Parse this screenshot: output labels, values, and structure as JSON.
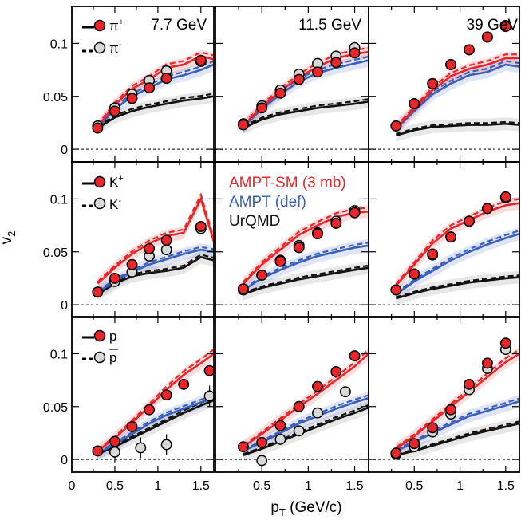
{
  "figure": {
    "ylabel": "v",
    "ylabel_sub": "2",
    "xlabel": "p",
    "xlabel_sub": "T",
    "xlabel_unit": " (GeV/c)",
    "energies": [
      "7.7 GeV",
      "11.5 GeV",
      "39 GeV"
    ],
    "x_ticks": [
      "0",
      "0.5",
      "1",
      "1.5"
    ],
    "y_ticks": [
      "0",
      "0.05",
      "0.1"
    ]
  },
  "legend_particles": [
    {
      "particle": "π",
      "charge_plus": "+",
      "charge_minus": "-"
    },
    {
      "particle": "K",
      "charge_plus": "+",
      "charge_minus": "-"
    },
    {
      "particle": "p",
      "charge_plus": "",
      "charge_minus": ""
    }
  ],
  "legend_models": [
    "AMPT-SM (3 mb)",
    "AMPT (def)",
    "UrQMD"
  ],
  "colors": {
    "ampt_sm": "#e8262a",
    "ampt_def": "#3a5fb8",
    "urqmd": "#111111",
    "marker_plus": "#e8262a",
    "marker_minus": "#d8d8d8"
  },
  "chart_data": {
    "type": "scatter",
    "xlim": [
      0,
      1.65
    ],
    "ylim": [
      -0.012,
      0.135
    ],
    "rows": [
      "pion",
      "kaon",
      "proton"
    ],
    "columns": [
      "7.7 GeV",
      "11.5 GeV",
      "39 GeV"
    ],
    "panels": [
      {
        "row": "pion",
        "energy": "7.7 GeV",
        "plus": {
          "x": [
            0.3,
            0.5,
            0.7,
            0.9,
            1.1,
            1.5
          ],
          "y": [
            0.02,
            0.036,
            0.048,
            0.058,
            0.067,
            0.084
          ]
        },
        "minus": {
          "x": [
            0.3,
            0.5,
            0.7,
            0.9,
            1.1,
            1.5
          ],
          "y": [
            0.022,
            0.039,
            0.052,
            0.065,
            0.074,
            0.083
          ]
        },
        "ampt_sm": {
          "x": [
            0.3,
            0.5,
            0.7,
            0.9,
            1.1,
            1.3,
            1.5,
            1.65
          ],
          "y": [
            0.021,
            0.042,
            0.057,
            0.066,
            0.077,
            0.08,
            0.088,
            0.085
          ]
        },
        "ampt_def": {
          "x": [
            0.3,
            0.5,
            0.7,
            0.9,
            1.1,
            1.3,
            1.5,
            1.65
          ],
          "y": [
            0.02,
            0.038,
            0.05,
            0.058,
            0.066,
            0.07,
            0.075,
            0.08
          ]
        },
        "urqmd": {
          "x": [
            0.3,
            0.5,
            0.7,
            0.9,
            1.1,
            1.3,
            1.5,
            1.65
          ],
          "y": [
            0.02,
            0.03,
            0.036,
            0.04,
            0.043,
            0.046,
            0.048,
            0.05
          ]
        }
      },
      {
        "row": "pion",
        "energy": "11.5 GeV",
        "plus": {
          "x": [
            0.3,
            0.5,
            0.7,
            0.9,
            1.1,
            1.3,
            1.5
          ],
          "y": [
            0.023,
            0.039,
            0.053,
            0.066,
            0.073,
            0.082,
            0.091
          ]
        },
        "minus": {
          "x": [
            0.3,
            0.5,
            0.7,
            0.9,
            1.1,
            1.3,
            1.5
          ],
          "y": [
            0.024,
            0.041,
            0.056,
            0.071,
            0.081,
            0.088,
            0.096
          ]
        },
        "ampt_sm": {
          "x": [
            0.3,
            0.5,
            0.7,
            0.9,
            1.1,
            1.3,
            1.5,
            1.65
          ],
          "y": [
            0.022,
            0.04,
            0.055,
            0.068,
            0.078,
            0.086,
            0.09,
            0.092
          ]
        },
        "ampt_def": {
          "x": [
            0.3,
            0.5,
            0.7,
            0.9,
            1.1,
            1.3,
            1.5,
            1.65
          ],
          "y": [
            0.021,
            0.038,
            0.052,
            0.064,
            0.072,
            0.077,
            0.081,
            0.084
          ]
        },
        "urqmd": {
          "x": [
            0.3,
            0.5,
            0.7,
            0.9,
            1.1,
            1.3,
            1.5,
            1.65
          ],
          "y": [
            0.02,
            0.028,
            0.033,
            0.036,
            0.039,
            0.041,
            0.043,
            0.045
          ]
        }
      },
      {
        "row": "pion",
        "energy": "39 GeV",
        "plus": {
          "x": [
            0.3,
            0.5,
            0.7,
            0.9,
            1.1,
            1.3,
            1.5
          ],
          "y": [
            0.022,
            0.043,
            0.062,
            0.08,
            0.094,
            0.106,
            0.116
          ]
        },
        "minus": {
          "x": [
            0.3,
            0.5,
            0.7,
            0.9,
            1.1,
            1.3,
            1.5
          ],
          "y": [
            0.022,
            0.043,
            0.062,
            0.08,
            0.094,
            0.106,
            0.117
          ]
        },
        "ampt_sm": {
          "x": [
            0.3,
            0.5,
            0.7,
            0.9,
            1.1,
            1.3,
            1.5,
            1.65
          ],
          "y": [
            0.02,
            0.038,
            0.056,
            0.069,
            0.076,
            0.08,
            0.086,
            0.086
          ]
        },
        "ampt_def": {
          "x": [
            0.3,
            0.5,
            0.7,
            0.9,
            1.1,
            1.3,
            1.5,
            1.65
          ],
          "y": [
            0.019,
            0.036,
            0.052,
            0.062,
            0.07,
            0.073,
            0.08,
            0.078
          ]
        },
        "urqmd": {
          "x": [
            0.3,
            0.5,
            0.7,
            0.9,
            1.1,
            1.3,
            1.5,
            1.65
          ],
          "y": [
            0.013,
            0.018,
            0.021,
            0.022,
            0.023,
            0.023,
            0.024,
            0.023
          ]
        }
      },
      {
        "row": "kaon",
        "energy": "7.7 GeV",
        "plus": {
          "x": [
            0.3,
            0.5,
            0.7,
            0.9,
            1.1,
            1.5
          ],
          "y": [
            0.012,
            0.025,
            0.038,
            0.053,
            0.061,
            0.074
          ]
        },
        "minus": {
          "x": [
            0.3,
            0.5,
            0.7,
            0.9,
            1.1,
            1.5
          ],
          "y": [
            0.012,
            0.022,
            0.031,
            0.046,
            0.052,
            0.072
          ]
        },
        "ampt_sm": {
          "x": [
            0.3,
            0.5,
            0.7,
            0.9,
            1.1,
            1.3,
            1.5,
            1.65
          ],
          "y": [
            0.02,
            0.035,
            0.048,
            0.058,
            0.065,
            0.068,
            0.1,
            0.06
          ]
        },
        "ampt_def": {
          "x": [
            0.3,
            0.5,
            0.7,
            0.9,
            1.1,
            1.3,
            1.5,
            1.65
          ],
          "y": [
            0.012,
            0.022,
            0.031,
            0.038,
            0.043,
            0.048,
            0.052,
            0.05
          ]
        },
        "urqmd": {
          "x": [
            0.3,
            0.5,
            0.7,
            0.9,
            1.1,
            1.3,
            1.5,
            1.65
          ],
          "y": [
            0.01,
            0.02,
            0.027,
            0.03,
            0.032,
            0.035,
            0.045,
            0.042
          ]
        }
      },
      {
        "row": "kaon",
        "energy": "11.5 GeV",
        "plus": {
          "x": [
            0.3,
            0.5,
            0.7,
            0.9,
            1.1,
            1.3,
            1.5
          ],
          "y": [
            0.015,
            0.028,
            0.041,
            0.054,
            0.067,
            0.077,
            0.087
          ]
        },
        "minus": {
          "x": [
            0.3,
            0.5,
            0.7,
            0.9,
            1.1,
            1.3,
            1.5
          ],
          "y": [
            0.014,
            0.028,
            0.042,
            0.056,
            0.068,
            0.079,
            0.089
          ]
        },
        "ampt_sm": {
          "x": [
            0.3,
            0.5,
            0.7,
            0.9,
            1.1,
            1.3,
            1.5,
            1.65
          ],
          "y": [
            0.02,
            0.038,
            0.052,
            0.066,
            0.075,
            0.083,
            0.087,
            0.088
          ]
        },
        "ampt_def": {
          "x": [
            0.3,
            0.5,
            0.7,
            0.9,
            1.1,
            1.3,
            1.5,
            1.65
          ],
          "y": [
            0.014,
            0.025,
            0.033,
            0.04,
            0.046,
            0.05,
            0.054,
            0.056
          ]
        },
        "urqmd": {
          "x": [
            0.3,
            0.5,
            0.7,
            0.9,
            1.1,
            1.3,
            1.5,
            1.65
          ],
          "y": [
            0.01,
            0.016,
            0.02,
            0.024,
            0.027,
            0.03,
            0.033,
            0.035
          ]
        }
      },
      {
        "row": "kaon",
        "energy": "39 GeV",
        "plus": {
          "x": [
            0.3,
            0.5,
            0.7,
            0.9,
            1.1,
            1.3,
            1.5
          ],
          "y": [
            0.014,
            0.029,
            0.048,
            0.064,
            0.079,
            0.091,
            0.102
          ]
        },
        "minus": {
          "x": [
            0.3,
            0.5,
            0.7,
            0.9,
            1.1,
            1.3,
            1.5
          ],
          "y": [
            0.014,
            0.029,
            0.047,
            0.064,
            0.079,
            0.091,
            0.101
          ]
        },
        "ampt_sm": {
          "x": [
            0.3,
            0.5,
            0.7,
            0.9,
            1.1,
            1.3,
            1.5,
            1.65
          ],
          "y": [
            0.018,
            0.038,
            0.058,
            0.072,
            0.08,
            0.088,
            0.094,
            0.096
          ]
        },
        "ampt_def": {
          "x": [
            0.3,
            0.5,
            0.7,
            0.9,
            1.1,
            1.3,
            1.5,
            1.65
          ],
          "y": [
            0.01,
            0.022,
            0.032,
            0.042,
            0.05,
            0.057,
            0.063,
            0.067
          ]
        },
        "urqmd": {
          "x": [
            0.3,
            0.5,
            0.7,
            0.9,
            1.1,
            1.3,
            1.5,
            1.65
          ],
          "y": [
            0.006,
            0.011,
            0.015,
            0.018,
            0.021,
            0.023,
            0.025,
            0.026
          ]
        }
      },
      {
        "row": "proton",
        "energy": "7.7 GeV",
        "plus": {
          "x": [
            0.3,
            0.5,
            0.7,
            0.9,
            1.1,
            1.3,
            1.6
          ],
          "y": [
            0.008,
            0.017,
            0.031,
            0.047,
            0.061,
            0.071,
            0.084
          ]
        },
        "minus": {
          "x": [
            0.5,
            0.8,
            1.1,
            1.6
          ],
          "y": [
            0.007,
            0.011,
            0.014,
            0.06
          ]
        },
        "ampt_sm": {
          "x": [
            0.3,
            0.5,
            0.7,
            0.9,
            1.1,
            1.3,
            1.5,
            1.65
          ],
          "y": [
            0.008,
            0.02,
            0.035,
            0.05,
            0.066,
            0.08,
            0.091,
            0.1
          ]
        },
        "ampt_def": {
          "x": [
            0.3,
            0.5,
            0.7,
            0.9,
            1.1,
            1.3,
            1.5,
            1.65
          ],
          "y": [
            0.006,
            0.014,
            0.024,
            0.034,
            0.042,
            0.048,
            0.054,
            0.058
          ]
        },
        "urqmd": {
          "x": [
            0.3,
            0.5,
            0.7,
            0.9,
            1.1,
            1.3,
            1.5,
            1.65
          ],
          "y": [
            0.005,
            0.012,
            0.02,
            0.028,
            0.036,
            0.044,
            0.051,
            0.056
          ]
        }
      },
      {
        "row": "proton",
        "energy": "11.5 GeV",
        "plus": {
          "x": [
            0.3,
            0.5,
            0.7,
            0.9,
            1.1,
            1.3,
            1.5
          ],
          "y": [
            0.012,
            0.016,
            0.032,
            0.05,
            0.069,
            0.083,
            0.098
          ]
        },
        "minus": {
          "x": [
            0.5,
            0.7,
            0.9,
            1.1,
            1.4
          ],
          "y": [
            -0.001,
            0.019,
            0.027,
            0.044,
            0.064
          ]
        },
        "ampt_sm": {
          "x": [
            0.3,
            0.5,
            0.7,
            0.9,
            1.1,
            1.3,
            1.5,
            1.65
          ],
          "y": [
            0.012,
            0.024,
            0.037,
            0.05,
            0.062,
            0.075,
            0.088,
            0.1
          ]
        },
        "ampt_def": {
          "x": [
            0.3,
            0.5,
            0.7,
            0.9,
            1.1,
            1.3,
            1.5,
            1.65
          ],
          "y": [
            0.008,
            0.016,
            0.025,
            0.034,
            0.041,
            0.048,
            0.054,
            0.058
          ]
        },
        "urqmd": {
          "x": [
            0.3,
            0.5,
            0.7,
            0.9,
            1.1,
            1.3,
            1.5,
            1.65
          ],
          "y": [
            0.004,
            0.01,
            0.017,
            0.024,
            0.031,
            0.038,
            0.044,
            0.049
          ]
        }
      },
      {
        "row": "proton",
        "energy": "39 GeV",
        "plus": {
          "x": [
            0.3,
            0.5,
            0.7,
            0.9,
            1.1,
            1.3,
            1.5
          ],
          "y": [
            0.006,
            0.015,
            0.03,
            0.047,
            0.071,
            0.091,
            0.11
          ]
        },
        "minus": {
          "x": [
            0.3,
            0.5,
            0.7,
            0.9,
            1.1,
            1.3,
            1.5
          ],
          "y": [
            0.005,
            0.012,
            0.026,
            0.043,
            0.066,
            0.086,
            0.104
          ]
        },
        "ampt_sm": {
          "x": [
            0.3,
            0.5,
            0.7,
            0.9,
            1.1,
            1.3,
            1.5,
            1.65
          ],
          "y": [
            0.01,
            0.022,
            0.036,
            0.05,
            0.064,
            0.078,
            0.092,
            0.1
          ]
        },
        "ampt_def": {
          "x": [
            0.3,
            0.5,
            0.7,
            0.9,
            1.1,
            1.3,
            1.5,
            1.65
          ],
          "y": [
            0.008,
            0.016,
            0.025,
            0.033,
            0.041,
            0.046,
            0.051,
            0.055
          ]
        },
        "urqmd": {
          "x": [
            0.3,
            0.5,
            0.7,
            0.9,
            1.1,
            1.3,
            1.5,
            1.65
          ],
          "y": [
            0.004,
            0.008,
            0.013,
            0.018,
            0.023,
            0.027,
            0.031,
            0.034
          ]
        }
      }
    ]
  }
}
